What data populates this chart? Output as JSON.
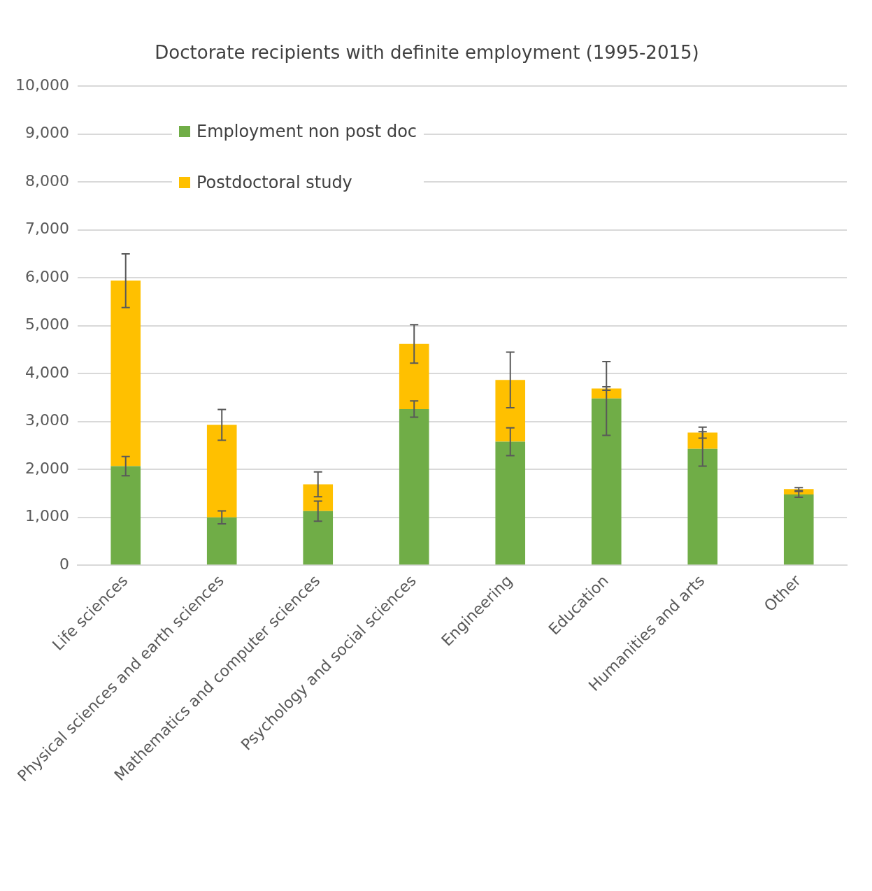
{
  "chart_data": {
    "type": "bar",
    "title": "Doctorate recipients with definite employment (1995-2015)",
    "categories": [
      "Life sciences",
      "Physical sciences and earth sciences",
      "Mathematics and computer sciences",
      "Psychology and social sciences",
      "Engineering",
      "Education",
      "Humanities and arts",
      "Other"
    ],
    "stacked": true,
    "series": [
      {
        "name": "Employment non post doc",
        "color": "#70ad47",
        "values": [
          2070,
          1000,
          1130,
          3260,
          2580,
          3480,
          2430,
          1480
        ],
        "errors": [
          200,
          135,
          210,
          170,
          290,
          770,
          360,
          60
        ]
      },
      {
        "name": "Postdoctoral study",
        "color": "#ffc000",
        "values": [
          3870,
          1930,
          560,
          1360,
          1290,
          210,
          340,
          110
        ],
        "errors": [
          560,
          320,
          260,
          400,
          580,
          35,
          115,
          30
        ]
      }
    ],
    "ylim": [
      0,
      10000
    ],
    "yticks": [
      {
        "value": 0,
        "label": "0"
      },
      {
        "value": 1000,
        "label": "1,000"
      },
      {
        "value": 2000,
        "label": "2,000"
      },
      {
        "value": 3000,
        "label": "3,000"
      },
      {
        "value": 4000,
        "label": "4,000"
      },
      {
        "value": 5000,
        "label": "5,000"
      },
      {
        "value": 6000,
        "label": "6,000"
      },
      {
        "value": 7000,
        "label": "7,000"
      },
      {
        "value": 8000,
        "label": "8,000"
      },
      {
        "value": 9000,
        "label": "9,000"
      },
      {
        "value": 10000,
        "label": "10,000"
      }
    ],
    "grid": "y",
    "legend": "top left"
  }
}
